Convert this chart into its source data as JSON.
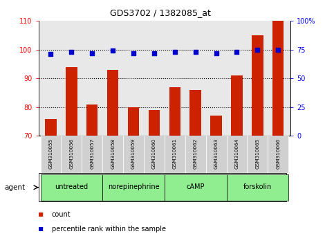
{
  "title": "GDS3702 / 1382085_at",
  "samples": [
    "GSM310055",
    "GSM310056",
    "GSM310057",
    "GSM310058",
    "GSM310059",
    "GSM310060",
    "GSM310061",
    "GSM310062",
    "GSM310063",
    "GSM310064",
    "GSM310065",
    "GSM310066"
  ],
  "counts": [
    76,
    94,
    81,
    93,
    80,
    79,
    87,
    86,
    77,
    91,
    105,
    110
  ],
  "percentile_ranks": [
    71,
    73,
    72,
    74,
    72,
    72,
    73,
    73,
    72,
    73,
    75,
    75
  ],
  "ylim_left": [
    70,
    110
  ],
  "ylim_right": [
    0,
    100
  ],
  "yticks_left": [
    70,
    80,
    90,
    100,
    110
  ],
  "yticks_right": [
    0,
    25,
    50,
    75,
    100
  ],
  "groups": [
    {
      "label": "untreated",
      "start": 0,
      "end": 3
    },
    {
      "label": "norepinephrine",
      "start": 3,
      "end": 6
    },
    {
      "label": "cAMP",
      "start": 6,
      "end": 9
    },
    {
      "label": "forskolin",
      "start": 9,
      "end": 12
    }
  ],
  "bar_color": "#cc2200",
  "dot_color": "#0000cc",
  "bar_width": 0.55,
  "bg_plot": "#e8e8e8",
  "bg_sample": "#d0d0d0",
  "bg_group": "#90ee90",
  "legend_items": [
    {
      "label": "count",
      "color": "#cc2200"
    },
    {
      "label": "percentile rank within the sample",
      "color": "#0000cc"
    }
  ]
}
